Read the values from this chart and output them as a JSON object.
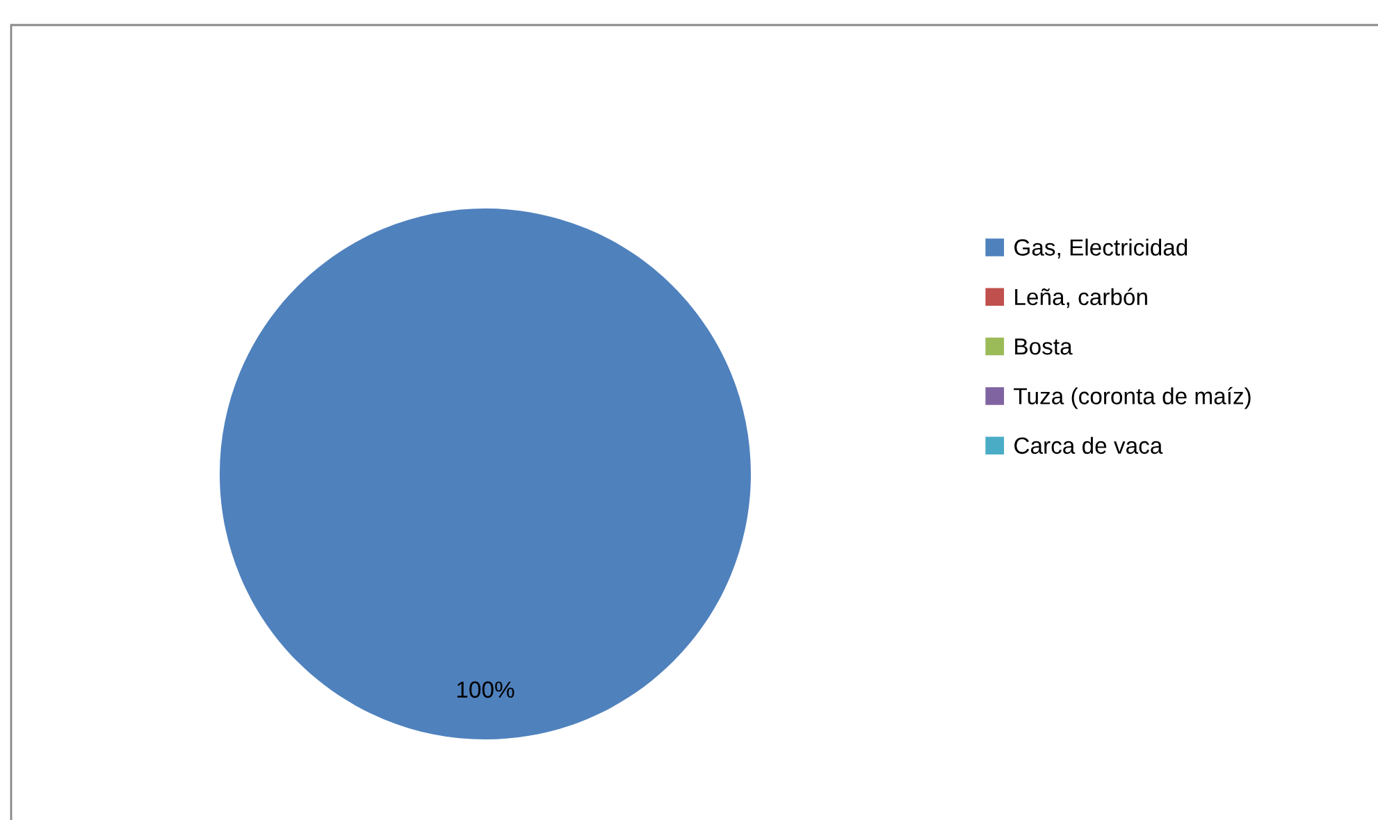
{
  "chart_data": {
    "type": "pie",
    "categories": [
      "Gas, Electricidad",
      "Leña, carbón",
      "Bosta",
      "Tuza (coronta de maíz)",
      "Carca de vaca"
    ],
    "values": [
      100,
      0,
      0,
      0,
      0
    ],
    "colors": [
      "#4f81bd",
      "#c0504d",
      "#9bbb59",
      "#8064a2",
      "#4bacc6"
    ],
    "value_labels": [
      "100%",
      null,
      null,
      null,
      null
    ],
    "legend": "right"
  }
}
